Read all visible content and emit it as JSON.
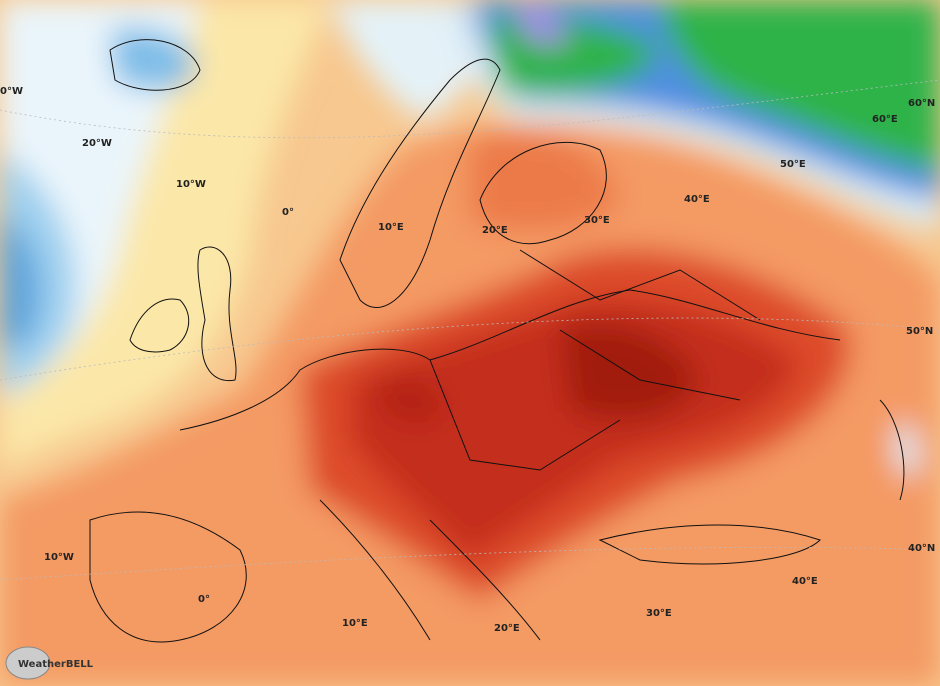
{
  "map": {
    "labels": [
      {
        "text": "0°W"
      },
      {
        "text": "20°W"
      },
      {
        "text": "10°W"
      },
      {
        "text": "0°"
      },
      {
        "text": "10°E"
      },
      {
        "text": "20°E"
      },
      {
        "text": "30°E"
      },
      {
        "text": "40°E"
      },
      {
        "text": "50°E"
      },
      {
        "text": "60°E"
      },
      {
        "text": "60°N"
      },
      {
        "text": "50°N"
      },
      {
        "text": "40°N"
      },
      {
        "text": "10°W"
      },
      {
        "text": "0°"
      },
      {
        "text": "10°E"
      },
      {
        "text": "20°E"
      },
      {
        "text": "30°E"
      },
      {
        "text": "40°E"
      }
    ],
    "logo": "WeatherBELL"
  }
}
